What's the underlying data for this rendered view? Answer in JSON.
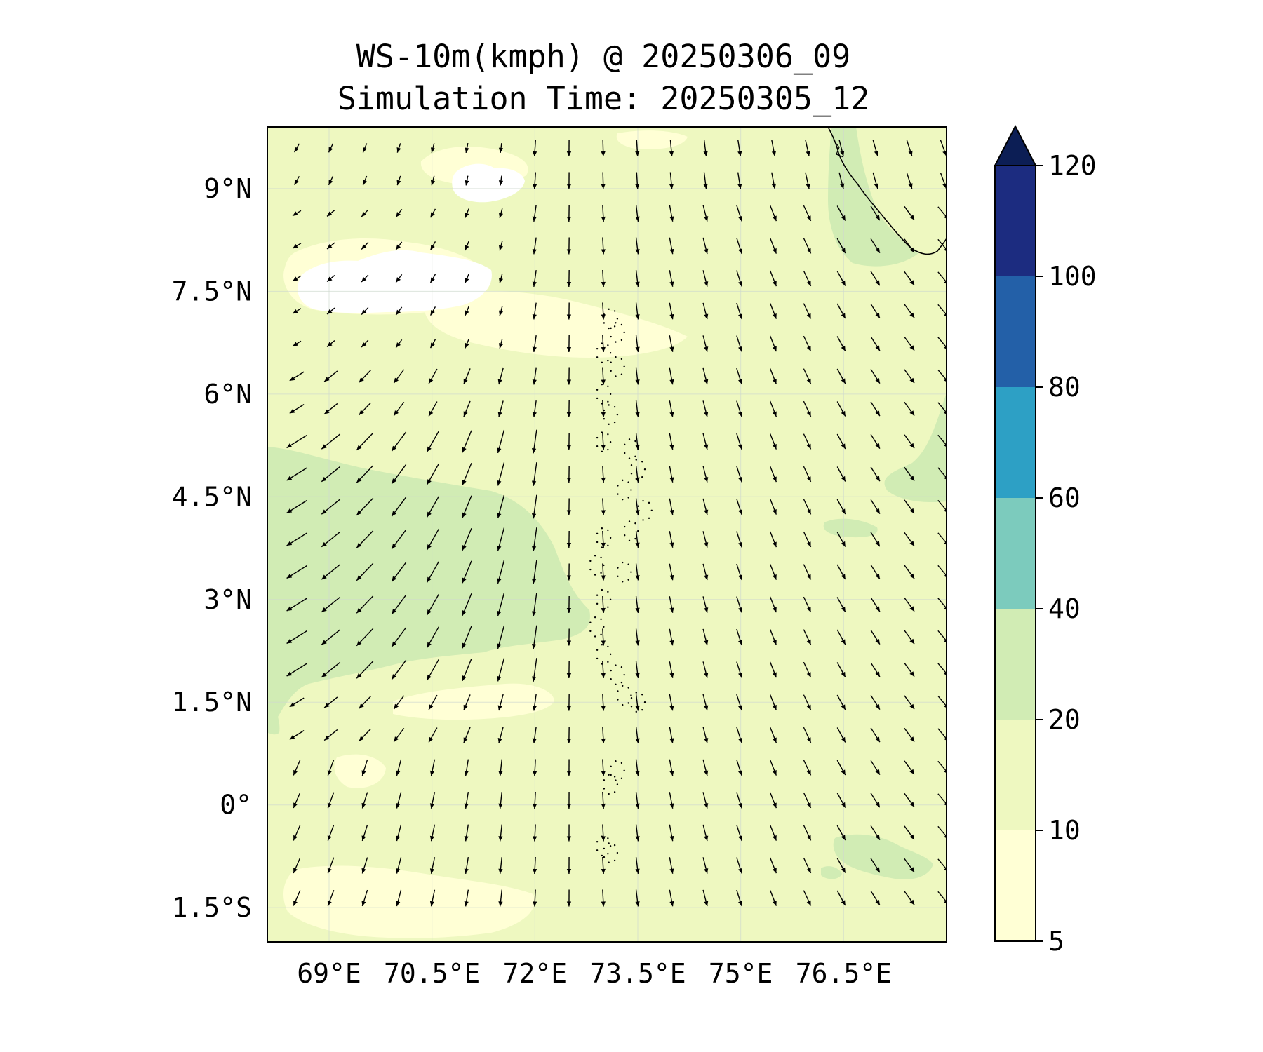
{
  "title": {
    "line1": "WS-10m(kmph) @ 20250306_09",
    "line2": "Simulation Time: 20250305_12"
  },
  "map": {
    "extent": {
      "lon_min": 68.1,
      "lon_max": 78.0,
      "lat_min": -2.0,
      "lat_max": 9.9
    },
    "lon_ticks": [
      {
        "value": 69.0,
        "label": "69°E"
      },
      {
        "value": 70.5,
        "label": "70.5°E"
      },
      {
        "value": 72.0,
        "label": "72°E"
      },
      {
        "value": 73.5,
        "label": "73.5°E"
      },
      {
        "value": 75.0,
        "label": "75°E"
      },
      {
        "value": 76.5,
        "label": "76.5°E"
      }
    ],
    "lat_ticks": [
      {
        "value": 9.0,
        "label": "9°N"
      },
      {
        "value": 7.5,
        "label": "7.5°N"
      },
      {
        "value": 6.0,
        "label": "6°N"
      },
      {
        "value": 4.5,
        "label": "4.5°N"
      },
      {
        "value": 3.0,
        "label": "3°N"
      },
      {
        "value": 1.5,
        "label": "1.5°N"
      },
      {
        "value": 0.0,
        "label": "0°"
      },
      {
        "value": -1.5,
        "label": "1.5°S"
      }
    ],
    "gridlines": true,
    "background_level_color": "#eef8c0"
  },
  "colorbar": {
    "levels": [
      5,
      10,
      20,
      40,
      60,
      80,
      100,
      120
    ],
    "labels": [
      "5",
      "10",
      "20",
      "40",
      "60",
      "80",
      "100",
      "120"
    ],
    "colors": [
      "#ffffd5",
      "#eef8c0",
      "#d1ecb4",
      "#7ccbbd",
      "#2da0c5",
      "#2360a8",
      "#1c2c80"
    ],
    "extend_color": "#0c1e55",
    "extend": "max"
  },
  "wind_field": {
    "note_colors": {
      "arrow": "#000000"
    }
  }
}
